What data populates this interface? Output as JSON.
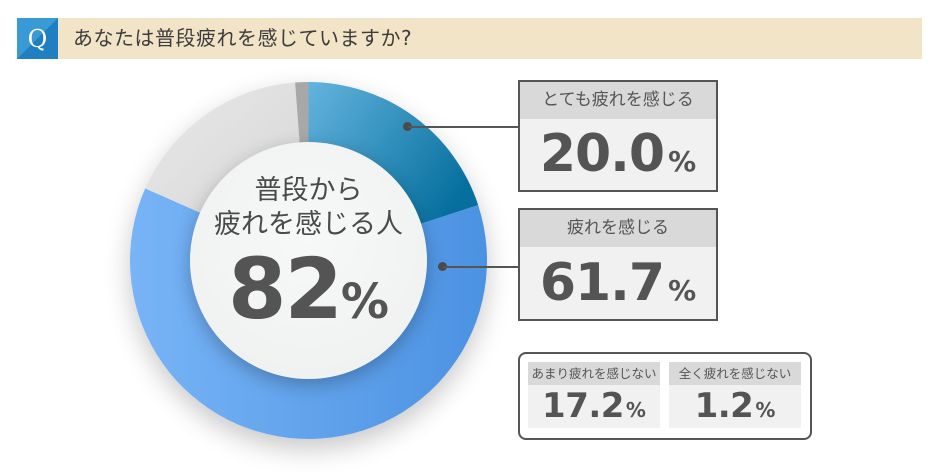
{
  "header": {
    "q_label": "Q",
    "question": "あなたは普段疲れを感じていますか?"
  },
  "center": {
    "line1": "普段から",
    "line2": "疲れを感じる人",
    "value": "82",
    "unit": "%"
  },
  "boxes": [
    {
      "label": "とても疲れを感じる",
      "value": "20.0",
      "unit": "%"
    },
    {
      "label": "疲れを感じる",
      "value": "61.7",
      "unit": "%"
    },
    {
      "label": "あまり疲れを感じない",
      "value": "17.2",
      "unit": "%"
    },
    {
      "label": "全く疲れを感じない",
      "value": "1.2",
      "unit": "%"
    }
  ],
  "colors": {
    "banner_bg": "#f2e4c6",
    "q_icon": "#2a8ccc",
    "very_tired": "#1a7fae",
    "tired": "#5b9fe8",
    "not_very": "#e3e3e3",
    "not_at_all": "#a9a9a9"
  },
  "chart_data": {
    "type": "pie",
    "subtype": "donut",
    "title": "あなたは普段疲れを感じていますか?",
    "center_label": "普段から疲れを感じる人 82%",
    "categories": [
      "とても疲れを感じる",
      "疲れを感じる",
      "あまり疲れを感じない",
      "全く疲れを感じない"
    ],
    "values": [
      20.0,
      61.7,
      17.2,
      1.2
    ],
    "unit": "%",
    "colors": [
      "#1a7fae",
      "#5b9fe8",
      "#e3e3e3",
      "#a9a9a9"
    ],
    "start_angle": "12 o'clock, clockwise",
    "legend": "callout boxes on right"
  }
}
